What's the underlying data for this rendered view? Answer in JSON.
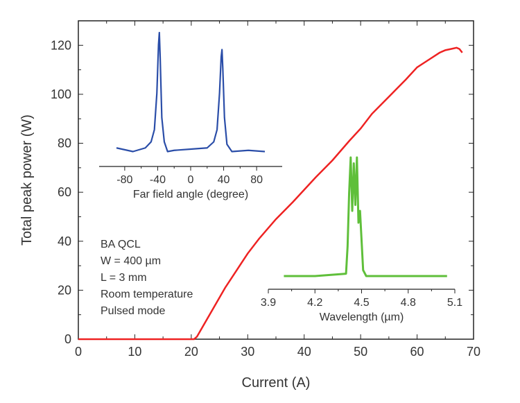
{
  "chart_data": [
    {
      "type": "line",
      "xlabel": "Current (A)",
      "ylabel": "Total peak power (W)",
      "xlim": [
        0,
        70
      ],
      "ylim": [
        0,
        130
      ],
      "xticks": [
        0,
        10,
        20,
        30,
        40,
        50,
        60,
        70
      ],
      "yticks": [
        0,
        20,
        40,
        60,
        80,
        100,
        120
      ],
      "color": "#ee2222",
      "x": [
        0,
        10,
        20,
        20.5,
        21,
        22,
        24,
        26,
        28,
        30,
        32,
        35,
        38,
        40,
        42,
        45,
        48,
        50,
        52,
        55,
        58,
        60,
        62,
        64,
        65,
        66,
        67,
        67.5,
        68
      ],
      "y": [
        0,
        0,
        0,
        0,
        1,
        5,
        13,
        21,
        28,
        35,
        41,
        49,
        56,
        61,
        66,
        73,
        81,
        86,
        92,
        99,
        106,
        111,
        114,
        117,
        118,
        118.5,
        119,
        118.5,
        117
      ],
      "annotations": [
        "BA QCL",
        "W = 400 µm",
        "L = 3 mm",
        "Room temperature",
        "Pulsed mode"
      ]
    },
    {
      "type": "line",
      "xlabel": "Far field angle (degree)",
      "xlim": [
        -111,
        111
      ],
      "xticks": [
        -80,
        -40,
        0,
        40,
        80
      ],
      "color": "#2a4da8",
      "x": [
        -90,
        -70,
        -55,
        -48,
        -44,
        -41,
        -39,
        -38,
        -37,
        -35,
        -32,
        -28,
        -20,
        0,
        20,
        28,
        32,
        35,
        37,
        38,
        39,
        41,
        44,
        50,
        70,
        90
      ],
      "y": [
        0.05,
        0.02,
        0.05,
        0.1,
        0.2,
        0.5,
        0.9,
        1.0,
        0.8,
        0.3,
        0.1,
        0.02,
        0.03,
        0.04,
        0.05,
        0.1,
        0.2,
        0.5,
        0.8,
        0.86,
        0.7,
        0.3,
        0.08,
        0.02,
        0.03,
        0.02
      ]
    },
    {
      "type": "line",
      "xlabel": "Wavelength (µm)",
      "xlim": [
        3.9,
        5.1
      ],
      "xticks": [
        3.9,
        4.2,
        4.5,
        4.8,
        5.1
      ],
      "color": "#5fbf3a",
      "x": [
        4.0,
        4.2,
        4.4,
        4.41,
        4.42,
        4.43,
        4.44,
        4.45,
        4.46,
        4.47,
        4.48,
        4.49,
        4.5,
        4.51,
        4.53,
        4.7,
        5.05
      ],
      "y": [
        0.0,
        0.0,
        0.02,
        0.25,
        0.7,
        1.0,
        0.55,
        0.95,
        0.6,
        1.0,
        0.45,
        0.55,
        0.3,
        0.05,
        0.0,
        0.0,
        0.0
      ]
    }
  ]
}
